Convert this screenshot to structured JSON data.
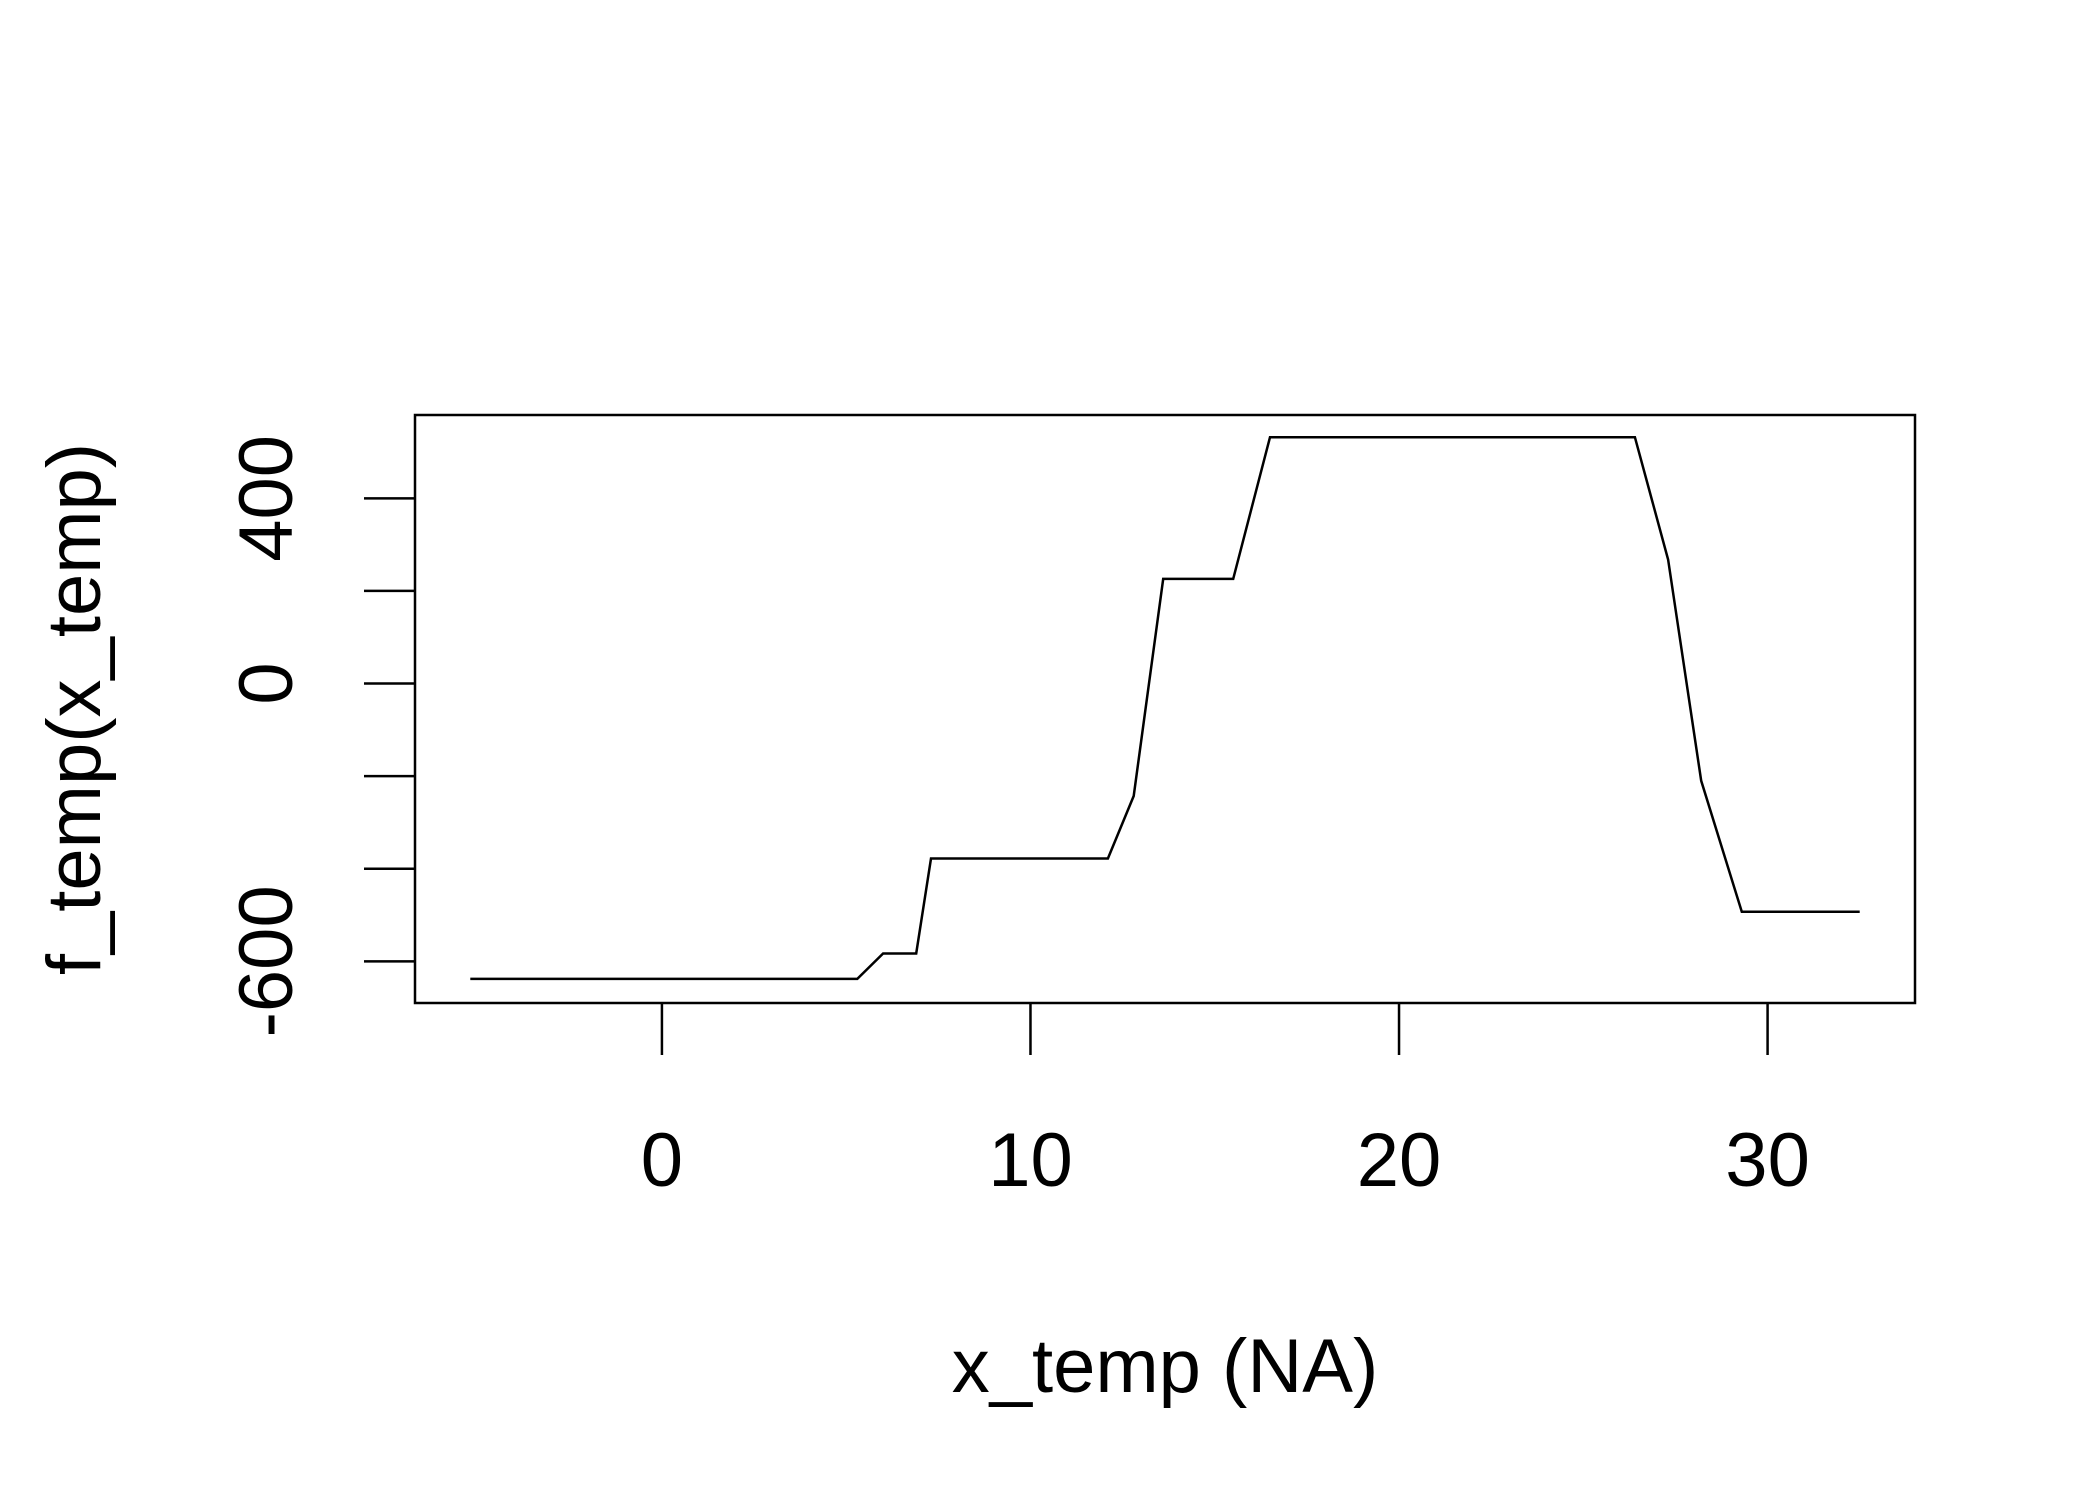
{
  "chart_data": {
    "type": "line",
    "title": "",
    "xlabel": "x_temp (NA)",
    "ylabel": "f_temp(x_temp)",
    "xlim": [
      -6.7,
      34
    ],
    "ylim": [
      -690,
      580
    ],
    "x_ticks": [
      0,
      10,
      20,
      30
    ],
    "x_tick_labels": [
      "0",
      "10",
      "20",
      "30"
    ],
    "y_ticks": [
      -600,
      -400,
      -200,
      0,
      200,
      400
    ],
    "y_tick_labels": [
      "-600",
      "",
      "",
      "0",
      "",
      "400"
    ],
    "grid": false,
    "legend": "none",
    "line_color": "#000000",
    "series": [
      {
        "x": [
          -5.2,
          5.3,
          6.0,
          6.9,
          7.3,
          12.1,
          12.8,
          13.6,
          15.5,
          16.5,
          26.4,
          27.3,
          28.2,
          29.3,
          32.5
        ],
        "y": [
          -638,
          -638,
          -583,
          -583,
          -378,
          -378,
          -243,
          226,
          226,
          532,
          532,
          268,
          -210,
          -493,
          -493
        ]
      }
    ]
  }
}
